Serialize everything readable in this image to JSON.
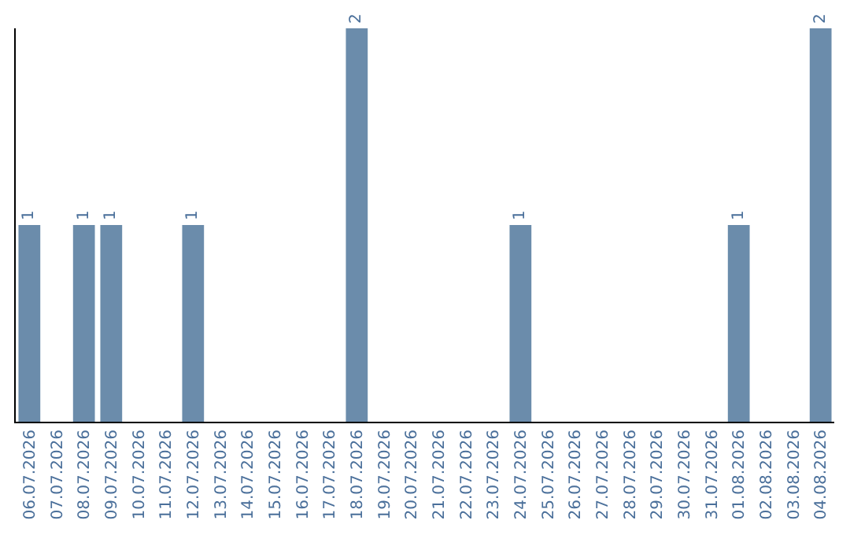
{
  "chart_data": {
    "type": "bar",
    "categories": [
      "06.07.2026",
      "07.07.2026",
      "08.07.2026",
      "09.07.2026",
      "10.07.2026",
      "11.07.2026",
      "12.07.2026",
      "13.07.2026",
      "14.07.2026",
      "15.07.2026",
      "16.07.2026",
      "17.07.2026",
      "18.07.2026",
      "19.07.2026",
      "20.07.2026",
      "21.07.2026",
      "22.07.2026",
      "23.07.2026",
      "24.07.2026",
      "25.07.2026",
      "26.07.2026",
      "27.07.2026",
      "28.07.2026",
      "29.07.2026",
      "30.07.2026",
      "31.07.2026",
      "01.08.2026",
      "02.08.2026",
      "03.08.2026",
      "04.08.2026"
    ],
    "values": [
      1,
      0,
      1,
      1,
      0,
      0,
      1,
      0,
      0,
      0,
      0,
      0,
      2,
      0,
      0,
      0,
      0,
      0,
      1,
      0,
      0,
      0,
      0,
      0,
      0,
      0,
      1,
      0,
      0,
      2
    ],
    "value_labels": [
      "1",
      null,
      "1",
      "1",
      null,
      null,
      "1",
      null,
      null,
      null,
      null,
      null,
      "2",
      null,
      null,
      null,
      null,
      null,
      "1",
      null,
      null,
      null,
      null,
      null,
      null,
      null,
      "1",
      null,
      null,
      "2"
    ],
    "color": "#6b8cab",
    "ylim": [
      0,
      2
    ],
    "tick_labels": "x",
    "grid": false,
    "legend": false
  }
}
